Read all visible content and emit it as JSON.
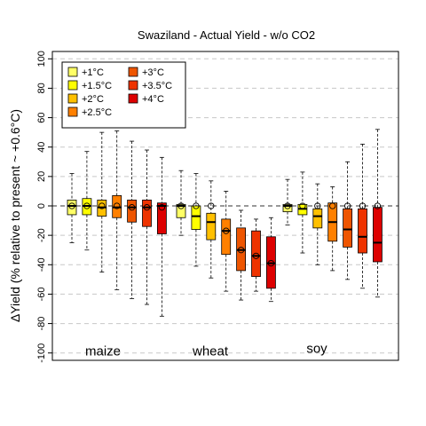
{
  "chart_data": {
    "type": "box",
    "title": "Swaziland - Actual Yield - w/o CO2",
    "ylabel": "ΔYield (% relative to present ~ +0.6°C)",
    "xlabel": "",
    "ylim": [
      -105,
      105
    ],
    "yticks": [
      -100,
      -80,
      -60,
      -40,
      -20,
      0,
      20,
      40,
      60,
      80,
      100
    ],
    "grid": "horizontal-dashed",
    "zero_line": "dashed",
    "legend_position": "top-left",
    "series": [
      {
        "name": "+1°C",
        "color": "#FFFF66"
      },
      {
        "name": "+1.5°C",
        "color": "#FFFF00"
      },
      {
        "name": "+2°C",
        "color": "#FFC000"
      },
      {
        "name": "+2.5°C",
        "color": "#FF8000"
      },
      {
        "name": "+3°C",
        "color": "#EE5500"
      },
      {
        "name": "+3.5°C",
        "color": "#EE3300"
      },
      {
        "name": "+4°C",
        "color": "#DD0000"
      }
    ],
    "groups": [
      {
        "label": "maize",
        "boxes": [
          {
            "whisker_low": -25,
            "q1": -6,
            "median": 0,
            "q3": 4,
            "whisker_high": 22,
            "mean": 0
          },
          {
            "whisker_low": -30,
            "q1": -6,
            "median": 0,
            "q3": 5,
            "whisker_high": 37,
            "mean": 0
          },
          {
            "whisker_low": -45,
            "q1": -7,
            "median": -1,
            "q3": 4,
            "whisker_high": 50,
            "mean": 0
          },
          {
            "whisker_low": -57,
            "q1": -8,
            "median": -1,
            "q3": 7,
            "whisker_high": 51,
            "mean": 0
          },
          {
            "whisker_low": -63,
            "q1": -11,
            "median": -1,
            "q3": 4,
            "whisker_high": 44,
            "mean": -1
          },
          {
            "whisker_low": -67,
            "q1": -14,
            "median": -1,
            "q3": 4,
            "whisker_high": 38,
            "mean": -1
          },
          {
            "whisker_low": -75,
            "q1": -19,
            "median": 0,
            "q3": 2,
            "whisker_high": 33,
            "mean": -1
          }
        ]
      },
      {
        "label": "wheat",
        "boxes": [
          {
            "whisker_low": -20,
            "q1": -8,
            "median": 0,
            "q3": 1,
            "whisker_high": 24,
            "mean": 0
          },
          {
            "whisker_low": -41,
            "q1": -16,
            "median": -7,
            "q3": 0,
            "whisker_high": 22,
            "mean": 0
          },
          {
            "whisker_low": -49,
            "q1": -23,
            "median": -11,
            "q3": -5,
            "whisker_high": 17,
            "mean": 0
          },
          {
            "whisker_low": -58,
            "q1": -33,
            "median": -17,
            "q3": -9,
            "whisker_high": 10,
            "mean": -17
          },
          {
            "whisker_low": -64,
            "q1": -44,
            "median": -30,
            "q3": -15,
            "whisker_high": -3,
            "mean": -30
          },
          {
            "whisker_low": -58,
            "q1": -48,
            "median": -34,
            "q3": -17,
            "whisker_high": -9,
            "mean": -34
          },
          {
            "whisker_low": -65,
            "q1": -56,
            "median": -39,
            "q3": -21,
            "whisker_high": -8,
            "mean": -39
          }
        ]
      },
      {
        "label": "soy",
        "boxes": [
          {
            "whisker_low": -13,
            "q1": -4,
            "median": 0,
            "q3": 1,
            "whisker_high": 18,
            "mean": 0
          },
          {
            "whisker_low": -32,
            "q1": -6,
            "median": -2,
            "q3": 1,
            "whisker_high": 23,
            "mean": 0
          },
          {
            "whisker_low": -40,
            "q1": -15,
            "median": -7,
            "q3": -2,
            "whisker_high": 15,
            "mean": 0
          },
          {
            "whisker_low": -44,
            "q1": -24,
            "median": -11,
            "q3": 2,
            "whisker_high": 13,
            "mean": 0
          },
          {
            "whisker_low": -50,
            "q1": -28,
            "median": -16,
            "q3": -2,
            "whisker_high": 30,
            "mean": 0
          },
          {
            "whisker_low": -56,
            "q1": -32,
            "median": -21,
            "q3": -2,
            "whisker_high": 42,
            "mean": 0
          },
          {
            "whisker_low": -62,
            "q1": -38,
            "median": -25,
            "q3": -1,
            "whisker_high": 52,
            "mean": 0
          }
        ]
      }
    ]
  }
}
